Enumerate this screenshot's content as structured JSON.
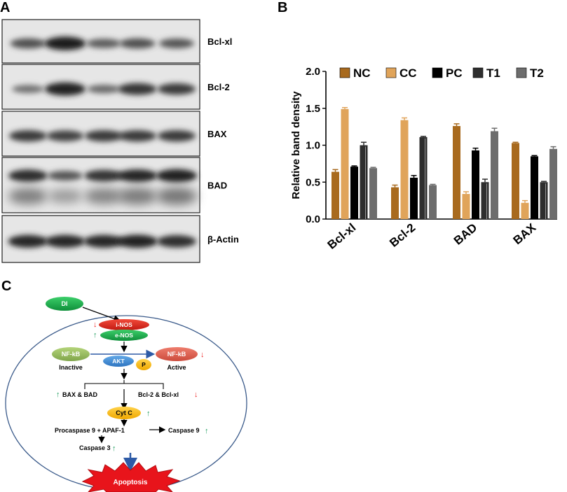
{
  "panels": {
    "a": {
      "letter": "A"
    },
    "b": {
      "letter": "B"
    },
    "c": {
      "letter": "C"
    }
  },
  "blots": {
    "bands": [
      {
        "label": "Bcl-xl",
        "intensity": [
          0.55,
          0.95,
          0.45,
          0.55,
          0.5
        ]
      },
      {
        "label": "Bcl-2",
        "intensity": [
          0.3,
          0.9,
          0.35,
          0.75,
          0.7
        ]
      },
      {
        "label": "BAX",
        "intensity": [
          0.7,
          0.65,
          0.7,
          0.7,
          0.7
        ]
      },
      {
        "label": "BAD",
        "intensity": [
          0.8,
          0.5,
          0.75,
          0.85,
          0.9
        ]
      },
      {
        "label": "β-Actin",
        "intensity": [
          0.85,
          0.85,
          0.85,
          0.9,
          0.8
        ]
      }
    ]
  },
  "chart_data": {
    "type": "bar",
    "ylabel": "Relative band density",
    "categories": [
      "Bcl-xl",
      "Bcl-2",
      "BAD",
      "BAX"
    ],
    "ylim": [
      0,
      2.0
    ],
    "yticks": [
      "0.0",
      "0.5",
      "1.0",
      "1.5",
      "2.0"
    ],
    "legend_position": "top",
    "grid": false,
    "series": [
      {
        "name": "NC",
        "color": "#a86a1e",
        "values": [
          0.64,
          0.43,
          1.26,
          1.03
        ],
        "errors": [
          0.03,
          0.03,
          0.03,
          0.01
        ]
      },
      {
        "name": "CC",
        "color": "#e0a45a",
        "values": [
          1.49,
          1.34,
          0.34,
          0.22
        ],
        "errors": [
          0.02,
          0.03,
          0.03,
          0.03
        ]
      },
      {
        "name": "PC",
        "color": "#000000",
        "values": [
          0.71,
          0.56,
          0.93,
          0.85
        ],
        "errors": [
          0.01,
          0.03,
          0.03,
          0.01
        ]
      },
      {
        "name": "T1",
        "color": "#2e2e2e",
        "values": [
          1.0,
          1.11,
          0.5,
          0.5
        ],
        "errors": [
          0.04,
          0.01,
          0.04,
          0.01
        ]
      },
      {
        "name": "T2",
        "color": "#6d6d6d",
        "values": [
          0.69,
          0.46,
          1.19,
          0.95
        ],
        "errors": [
          0.01,
          0.01,
          0.04,
          0.03
        ]
      }
    ]
  },
  "pathway": {
    "di": "DI",
    "inos": "i-NOS",
    "enos": "e-NOS",
    "nfkb_left": "NF-kB",
    "inactive": "Inactive",
    "nfkb_right": "NF-kB",
    "active": "Active",
    "akt": "AKT",
    "p": "P",
    "bax_bad": "BAX & BAD",
    "bcl": "Bcl-2 & Bcl-xl",
    "cytc": "Cyt C",
    "procaspase": "Procaspase 9 + APAF-1",
    "caspase9": "Caspase 9",
    "caspase3": "Caspase 3",
    "apoptosis": "Apoptosis"
  }
}
